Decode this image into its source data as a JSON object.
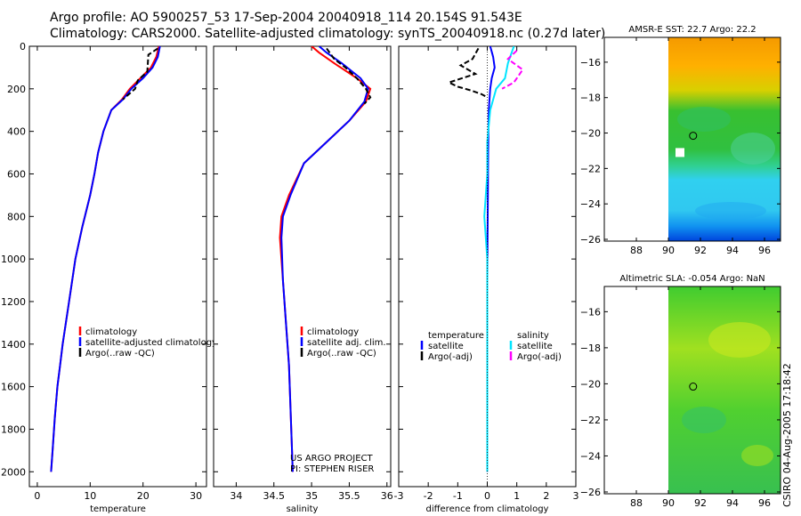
{
  "header": {
    "line1": "Argo profile: AO 5900257_53 17-Sep-2004 20040918_114 20.154S 91.543E",
    "line2": "Climatology: CARS2000. Satellite-adjusted climatology: synTS_20040918.nc (0.27d later)"
  },
  "stamp": "CSIRO 04-Aug-2005 17:18:42",
  "colors": {
    "climatology": "#ff0000",
    "satellite": "#0000ff",
    "argo": "#000000",
    "sal_satellite": "#00e5ff",
    "sal_argo": "#ff00ff"
  },
  "chart_data": [
    {
      "type": "line",
      "name": "temperature",
      "xlabel": "temperature",
      "ylabel": "",
      "xlim": [
        -1.5,
        32
      ],
      "ylim": [
        0,
        2070
      ],
      "xticks": [
        0,
        10,
        20,
        30
      ],
      "yticks": [
        0,
        200,
        400,
        600,
        800,
        1000,
        1200,
        1400,
        1600,
        1800,
        2000
      ],
      "legend": [
        "climatology",
        "satellite-adjusted climatology",
        "Argo(..raw -QC)"
      ],
      "series": [
        {
          "name": "climatology",
          "color": "#ff0000",
          "x": [
            23.0,
            22.5,
            21.5,
            19.5,
            17.5,
            16.0,
            14.0,
            12.5,
            11.5,
            10.8,
            10.0,
            9.0,
            8.5,
            7.2,
            6.0,
            5.4,
            4.8,
            4.3,
            3.8,
            3.3,
            2.9,
            2.6
          ],
          "y": [
            0,
            50,
            100,
            150,
            200,
            250,
            300,
            400,
            500,
            600,
            700,
            800,
            850,
            1000,
            1200,
            1300,
            1400,
            1500,
            1600,
            1750,
            1900,
            2000
          ]
        },
        {
          "name": "satellite-adjusted climatology",
          "color": "#0000ff",
          "x": [
            23.2,
            22.8,
            21.8,
            20.0,
            17.8,
            16.2,
            14.0,
            12.5,
            11.5,
            10.8,
            10.0,
            9.0,
            8.5,
            7.2,
            6.0,
            5.4,
            4.8,
            4.3,
            3.8,
            3.3,
            2.9,
            2.6
          ],
          "y": [
            0,
            50,
            100,
            150,
            200,
            250,
            300,
            400,
            500,
            600,
            700,
            800,
            850,
            1000,
            1200,
            1300,
            1400,
            1500,
            1600,
            1750,
            1900,
            2000
          ]
        },
        {
          "name": "Argo(..raw -QC)",
          "color": "#000000",
          "x": [
            22.8,
            21.0,
            20.8,
            19.0,
            18.5,
            16.2
          ],
          "y": [
            10,
            40,
            120,
            160,
            200,
            250
          ]
        }
      ]
    },
    {
      "type": "line",
      "name": "salinity",
      "xlabel": "salinity",
      "ylabel": "",
      "xlim": [
        33.7,
        36.05
      ],
      "ylim": [
        0,
        2070
      ],
      "xticks": [
        34,
        34.5,
        35,
        35.5,
        36
      ],
      "yticks": [
        0,
        200,
        400,
        600,
        800,
        1000,
        1200,
        1400,
        1600,
        1800,
        2000
      ],
      "legend": [
        "climatology",
        "satellite adj. clim.",
        "Argo(..raw -QC)"
      ],
      "annotation": [
        "US ARGO PROJECT",
        "PI: STEPHEN RISER"
      ],
      "series": [
        {
          "name": "climatology",
          "color": "#ff0000",
          "x": [
            35.0,
            35.1,
            35.3,
            35.6,
            35.78,
            35.72,
            35.5,
            35.2,
            34.9,
            34.7,
            34.6,
            34.58,
            34.62,
            34.66,
            34.7,
            34.72,
            34.74,
            34.75
          ],
          "y": [
            0,
            30,
            80,
            150,
            200,
            260,
            350,
            450,
            550,
            700,
            800,
            900,
            1100,
            1300,
            1500,
            1700,
            1900,
            2000
          ]
        },
        {
          "name": "satellite adj. clim.",
          "color": "#0000ff",
          "x": [
            35.1,
            35.2,
            35.4,
            35.65,
            35.75,
            35.7,
            35.5,
            35.2,
            34.9,
            34.72,
            34.62,
            34.6,
            34.62,
            34.66,
            34.7,
            34.72,
            34.74,
            34.75
          ],
          "y": [
            0,
            30,
            80,
            150,
            200,
            260,
            350,
            450,
            550,
            700,
            800,
            900,
            1100,
            1300,
            1500,
            1700,
            1900,
            2000
          ]
        },
        {
          "name": "Argo(..raw -QC)",
          "color": "#000000",
          "x": [
            35.2,
            35.3,
            35.45,
            35.6,
            35.72,
            35.78,
            35.7
          ],
          "y": [
            10,
            60,
            100,
            150,
            200,
            240,
            270
          ]
        }
      ]
    },
    {
      "type": "line",
      "name": "difference",
      "xlabel": "difference from climatology",
      "ylabel": "",
      "xlim": [
        -3,
        3
      ],
      "ylim": [
        0,
        2070
      ],
      "xticks": [
        -3,
        -2,
        -1,
        0,
        1,
        2,
        3
      ],
      "yticks": [
        0,
        200,
        400,
        600,
        800,
        1000,
        1200,
        1400,
        1600,
        1800,
        2000
      ],
      "legend_temperature": {
        "title": "temperature",
        "items": [
          "satellite",
          "Argo(-adj)"
        ]
      },
      "legend_salinity": {
        "title": "salinity",
        "items": [
          "satellite",
          "Argo(-adj)"
        ]
      },
      "series": [
        {
          "name": "temperature satellite",
          "color": "#0000ff",
          "x": [
            0.1,
            0.2,
            0.25,
            0.15,
            0.1,
            0.05,
            0.03,
            0.02,
            0.01,
            0.0,
            0.0,
            0.0,
            0.0,
            0.0
          ],
          "y": [
            0,
            50,
            100,
            150,
            200,
            300,
            500,
            700,
            900,
            1100,
            1300,
            1500,
            1800,
            2000
          ]
        },
        {
          "name": "temperature Argo(-adj)",
          "color": "#000000",
          "x": [
            -0.3,
            -0.5,
            -0.9,
            -0.4,
            -1.3,
            -1.0,
            -0.5,
            -0.2,
            0.0
          ],
          "y": [
            10,
            60,
            90,
            130,
            170,
            190,
            210,
            225,
            240
          ]
        },
        {
          "name": "salinity satellite",
          "color": "#00e5ff",
          "x": [
            0.9,
            0.7,
            0.6,
            0.3,
            0.1,
            0.0,
            0.0,
            -0.1,
            0.0,
            0.0,
            0.0,
            0.0,
            0.0
          ],
          "y": [
            0,
            80,
            150,
            200,
            300,
            450,
            600,
            800,
            1000,
            1200,
            1500,
            1800,
            2000
          ]
        },
        {
          "name": "salinity Argo(-adj)",
          "color": "#ff00ff",
          "x": [
            1.0,
            0.7,
            1.2,
            0.9,
            0.5
          ],
          "y": [
            20,
            60,
            110,
            170,
            200
          ]
        }
      ]
    },
    {
      "type": "heatmap",
      "name": "sst_map",
      "title": "AMSR-E SST: 22.7  Argo: 22.2",
      "xlim": [
        86,
        97
      ],
      "ylim": [
        -26.1,
        -14.6
      ],
      "xticks": [
        88,
        90,
        92,
        94,
        96
      ],
      "yticks": [
        -16,
        -18,
        -20,
        -22,
        -24,
        -26
      ],
      "data_region_x": [
        90,
        97
      ],
      "marker": {
        "lon": 91.543,
        "lat": -20.154
      },
      "note": "SST field colours ~ orange north, green middle, cyan/blue south"
    },
    {
      "type": "heatmap",
      "name": "sla_map",
      "title": "Altimetric SLA: -0.054  Argo: NaN",
      "xlim": [
        86,
        97
      ],
      "ylim": [
        -26.1,
        -14.6
      ],
      "xticks": [
        88,
        90,
        92,
        94,
        96
      ],
      "yticks": [
        -16,
        -18,
        -20,
        -22,
        -24,
        -26
      ],
      "data_region_x": [
        90,
        97
      ],
      "marker": {
        "lon": 91.543,
        "lat": -20.154
      },
      "note": "SLA field colours ~ green/yellow-green"
    }
  ]
}
